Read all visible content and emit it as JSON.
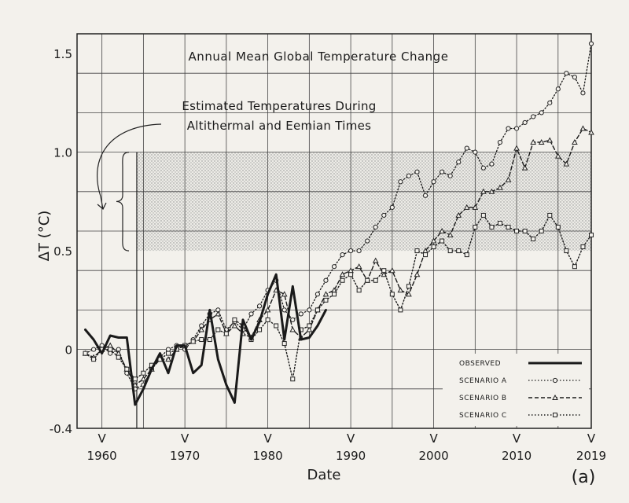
{
  "chart_data": {
    "type": "line",
    "title": "Annual Mean Global Temperature Change",
    "annotation": [
      "Estimated Temperatures During",
      "Altithermal and Eemian Times"
    ],
    "shaded_band": [
      0.5,
      1.0
    ],
    "xlabel": "Date",
    "ylabel": "ΔT (°C)",
    "panel_label": "(a)",
    "xlim": [
      1957,
      2019
    ],
    "ylim": [
      -0.4,
      1.6
    ],
    "x_ticks": [
      1960,
      1970,
      1980,
      1990,
      2000,
      2010,
      2019
    ],
    "x_tick_labels": [
      "1960",
      "1970",
      "1980",
      "1990",
      "2000",
      "2010",
      "2019"
    ],
    "y_ticks": [
      -0.4,
      0,
      0.5,
      1.0,
      1.5
    ],
    "y_tick_labels": [
      "-0.4",
      "0",
      "0.5",
      "1.0",
      "1.5"
    ],
    "marker_label": "V",
    "v_markers": [
      1960,
      1970,
      1980,
      1990,
      2000,
      2010,
      2019
    ],
    "legend_position": "bottom-right",
    "grid": true,
    "series": [
      {
        "name": "OBSERVED",
        "style": "solid",
        "x": [
          1958,
          1959,
          1960,
          1961,
          1962,
          1963,
          1964,
          1965,
          1966,
          1967,
          1968,
          1969,
          1970,
          1971,
          1972,
          1973,
          1974,
          1975,
          1976,
          1977,
          1978,
          1979,
          1980,
          1981,
          1982,
          1983,
          1984,
          1985,
          1986,
          1987
        ],
        "values": [
          0.1,
          0.05,
          -0.02,
          0.07,
          0.06,
          0.06,
          -0.28,
          -0.2,
          -0.1,
          -0.02,
          -0.12,
          0.02,
          0.02,
          -0.12,
          -0.08,
          0.2,
          -0.05,
          -0.18,
          -0.27,
          0.15,
          0.05,
          0.14,
          0.28,
          0.38,
          0.05,
          0.32,
          0.05,
          0.06,
          0.12,
          0.2
        ]
      },
      {
        "name": "SCENARIO A",
        "style": "dotted-circle",
        "x": [
          1958,
          1959,
          1960,
          1961,
          1962,
          1963,
          1964,
          1965,
          1966,
          1967,
          1968,
          1969,
          1970,
          1971,
          1972,
          1973,
          1974,
          1975,
          1976,
          1977,
          1978,
          1979,
          1980,
          1981,
          1982,
          1983,
          1984,
          1985,
          1986,
          1987,
          1988,
          1989,
          1990,
          1991,
          1992,
          1993,
          1994,
          1995,
          1996,
          1997,
          1998,
          1999,
          2000,
          2001,
          2002,
          2003,
          2004,
          2005,
          2006,
          2007,
          2008,
          2009,
          2010,
          2011,
          2012,
          2013,
          2014,
          2015,
          2016,
          2017,
          2018,
          2019
        ],
        "values": [
          -0.02,
          0.0,
          0.02,
          -0.02,
          0.0,
          -0.12,
          -0.2,
          -0.18,
          -0.1,
          -0.04,
          0.0,
          0.02,
          0.0,
          0.05,
          0.12,
          0.18,
          0.2,
          0.1,
          0.14,
          0.1,
          0.18,
          0.22,
          0.3,
          0.35,
          0.2,
          0.15,
          0.18,
          0.2,
          0.28,
          0.35,
          0.42,
          0.48,
          0.5,
          0.5,
          0.55,
          0.62,
          0.68,
          0.72,
          0.85,
          0.88,
          0.9,
          0.78,
          0.85,
          0.9,
          0.88,
          0.95,
          1.02,
          1.0,
          0.92,
          0.94,
          1.05,
          1.12,
          1.12,
          1.15,
          1.18,
          1.2,
          1.25,
          1.32,
          1.4,
          1.38,
          1.3,
          1.55
        ]
      },
      {
        "name": "SCENARIO B",
        "style": "dashed-triangle",
        "x": [
          1958,
          1959,
          1960,
          1961,
          1962,
          1963,
          1964,
          1965,
          1966,
          1967,
          1968,
          1969,
          1970,
          1971,
          1972,
          1973,
          1974,
          1975,
          1976,
          1977,
          1978,
          1979,
          1980,
          1981,
          1982,
          1983,
          1984,
          1985,
          1986,
          1987,
          1988,
          1989,
          1990,
          1991,
          1992,
          1993,
          1994,
          1995,
          1996,
          1997,
          1998,
          1999,
          2000,
          2001,
          2002,
          2003,
          2004,
          2005,
          2006,
          2007,
          2008,
          2009,
          2010,
          2011,
          2012,
          2013,
          2014,
          2015,
          2016,
          2017,
          2018,
          2019
        ],
        "values": [
          -0.02,
          -0.04,
          0.0,
          0.02,
          -0.02,
          -0.1,
          -0.18,
          -0.15,
          -0.1,
          -0.05,
          -0.05,
          0.0,
          0.02,
          0.04,
          0.1,
          0.15,
          0.18,
          0.08,
          0.12,
          0.08,
          0.06,
          0.15,
          0.2,
          0.3,
          0.28,
          0.1,
          0.06,
          0.1,
          0.2,
          0.28,
          0.3,
          0.38,
          0.4,
          0.42,
          0.35,
          0.45,
          0.38,
          0.4,
          0.3,
          0.28,
          0.38,
          0.5,
          0.55,
          0.6,
          0.58,
          0.68,
          0.72,
          0.72,
          0.8,
          0.8,
          0.82,
          0.86,
          1.02,
          0.92,
          1.05,
          1.05,
          1.06,
          0.98,
          0.94,
          1.05,
          1.12,
          1.1
        ]
      },
      {
        "name": "SCENARIO C",
        "style": "dotted-square",
        "x": [
          1958,
          1959,
          1960,
          1961,
          1962,
          1963,
          1964,
          1965,
          1966,
          1967,
          1968,
          1969,
          1970,
          1971,
          1972,
          1973,
          1974,
          1975,
          1976,
          1977,
          1978,
          1979,
          1980,
          1981,
          1982,
          1983,
          1984,
          1985,
          1986,
          1987,
          1988,
          1989,
          1990,
          1991,
          1992,
          1993,
          1994,
          1995,
          1996,
          1997,
          1998,
          1999,
          2000,
          2001,
          2002,
          2003,
          2004,
          2005,
          2006,
          2007,
          2008,
          2009,
          2010,
          2011,
          2012,
          2013,
          2014,
          2015,
          2016,
          2017,
          2018,
          2019
        ],
        "values": [
          -0.02,
          -0.05,
          0.0,
          0.0,
          -0.04,
          -0.1,
          -0.15,
          -0.12,
          -0.08,
          -0.05,
          -0.02,
          0.0,
          0.02,
          0.04,
          0.05,
          0.05,
          0.1,
          0.08,
          0.15,
          0.12,
          0.05,
          0.1,
          0.15,
          0.12,
          0.03,
          -0.15,
          0.1,
          0.12,
          0.2,
          0.25,
          0.28,
          0.35,
          0.38,
          0.3,
          0.35,
          0.35,
          0.4,
          0.28,
          0.2,
          0.32,
          0.5,
          0.48,
          0.52,
          0.55,
          0.5,
          0.5,
          0.48,
          0.62,
          0.68,
          0.62,
          0.64,
          0.62,
          0.6,
          0.6,
          0.56,
          0.6,
          0.68,
          0.62,
          0.5,
          0.42,
          0.52,
          0.58
        ]
      }
    ]
  }
}
